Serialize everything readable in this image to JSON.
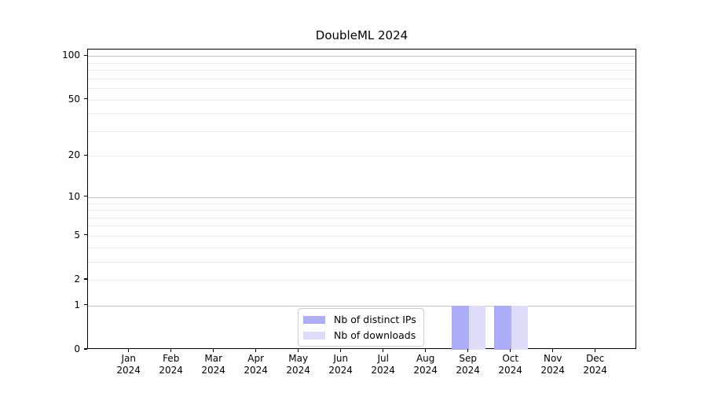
{
  "figure": {
    "background": "#ffffff",
    "text_color": "#000000"
  },
  "chart_data": {
    "type": "bar",
    "title": "DoubleML 2024",
    "categories": [
      "Jan 2024",
      "Feb 2024",
      "Mar 2024",
      "Apr 2024",
      "May 2024",
      "Jun 2024",
      "Jul 2024",
      "Aug 2024",
      "Sep 2024",
      "Oct 2024",
      "Nov 2024",
      "Dec 2024"
    ],
    "series": [
      {
        "name": "Nb of distinct IPs",
        "color": "#acacf8",
        "values": [
          0,
          0,
          0,
          0,
          0,
          0,
          0,
          0,
          1,
          1,
          0,
          0
        ]
      },
      {
        "name": "Nb of downloads",
        "color": "#ddddfa",
        "values": [
          0,
          0,
          0,
          0,
          0,
          0,
          0,
          0,
          1,
          1,
          0,
          0
        ]
      }
    ],
    "yscale": "log10(1+x)",
    "ylim": [
      0,
      110
    ],
    "y_tick_values": [
      0,
      1,
      2,
      5,
      10,
      20,
      50,
      100
    ],
    "y_tick_labels": [
      "0",
      "1",
      "2",
      "5",
      "10",
      "20",
      "50",
      "100"
    ],
    "grid_major_values": [
      1,
      10,
      100
    ],
    "grid_minor_values": [
      2,
      3,
      4,
      5,
      6,
      7,
      8,
      9,
      20,
      30,
      40,
      50,
      60,
      70,
      80,
      90
    ],
    "grid_on": true,
    "legend_position": "lower-center",
    "colors": {
      "grid_major": "#c3c3c3",
      "grid_minor": "#eaeaea",
      "spine": "#000000",
      "legend_border": "#cccccc",
      "legend_background": "#ffffff"
    }
  }
}
